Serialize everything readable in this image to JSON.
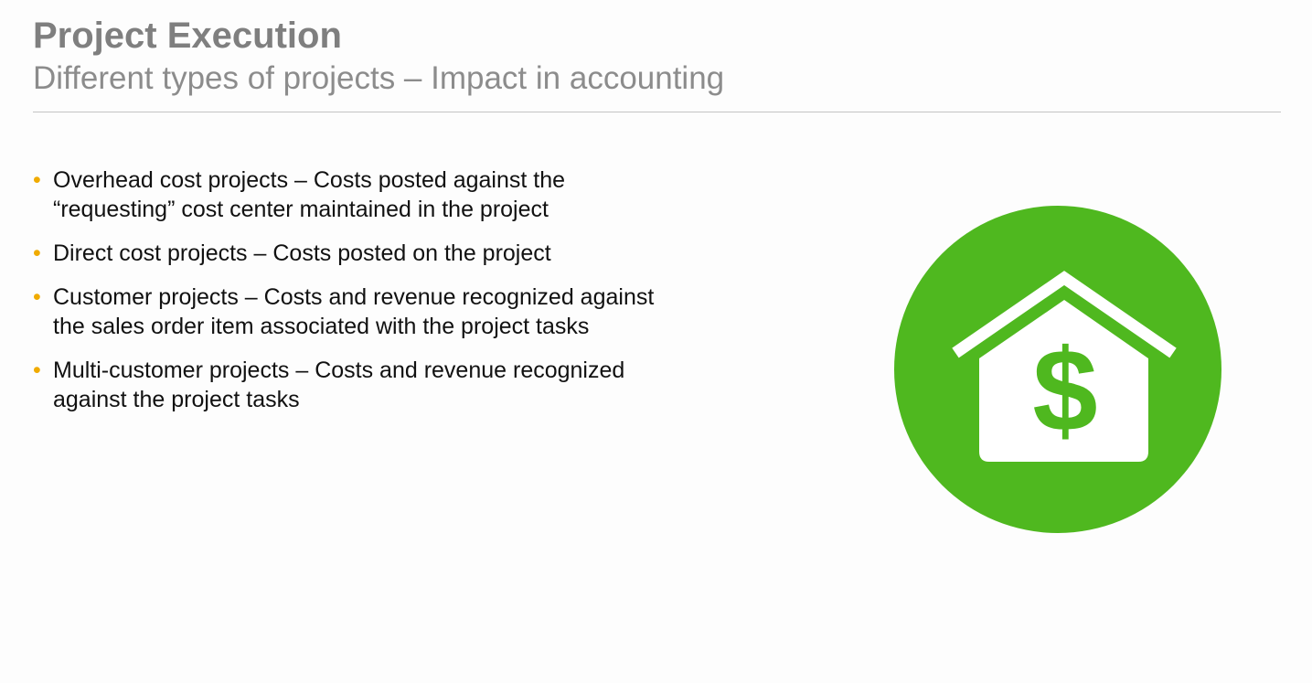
{
  "header": {
    "title": "Project Execution",
    "subtitle": "Different types of projects – Impact in accounting"
  },
  "bullets": [
    {
      "text": "Overhead cost projects – Costs posted against the “requesting” cost center maintained in the project"
    },
    {
      "text": "Direct cost projects – Costs posted on the project"
    },
    {
      "text": "Customer projects – Costs and revenue recognized against the sales order item associated with the project tasks"
    },
    {
      "text": "Multi-customer projects – Costs and revenue recognized against the project tasks"
    }
  ],
  "bullet_glyph": "•",
  "colors": {
    "bullet": "#f0ab00",
    "title": "#7f7f7f",
    "icon_circle": "#4fb81f",
    "icon_house": "#ffffff"
  },
  "illustration": {
    "icon": "house-dollar-icon"
  }
}
